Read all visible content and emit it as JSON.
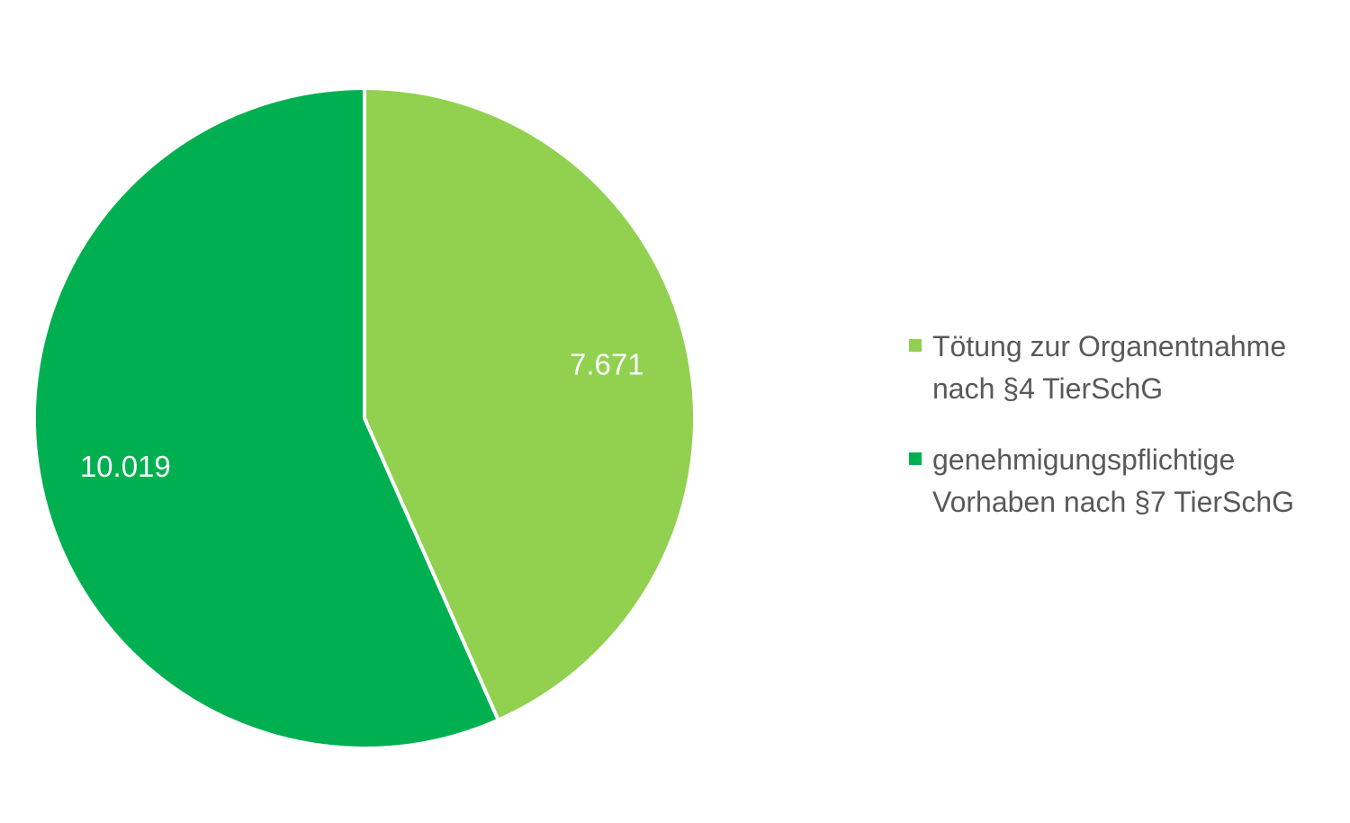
{
  "chart_data": {
    "type": "pie",
    "title": "",
    "categories": [
      "Tötung zur Organentnahme\nnach §4 TierSchG",
      "genehmigungspflichtige\nVorhaben nach §7 TierSchG"
    ],
    "values": [
      7671,
      10019
    ],
    "value_labels": [
      "7.671",
      "10.019"
    ],
    "colors": [
      "#92D050",
      "#00B050"
    ],
    "start_angle": "12 o'clock",
    "direction": "clockwise",
    "legend": "right"
  }
}
